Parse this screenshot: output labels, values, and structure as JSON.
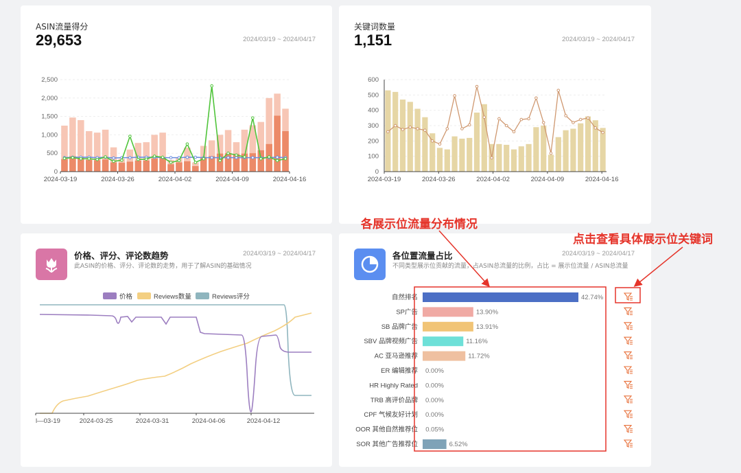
{
  "card1": {
    "title": "ASIN流量得分",
    "value": "29,653",
    "date": "2024/03/19 ~ 2024/04/17",
    "chart_data": {
      "type": "bar",
      "ylim": [
        0,
        2500
      ],
      "yticks": [
        "0",
        "500",
        "1,000",
        "1,500",
        "2,000",
        "2,500"
      ],
      "xticks": [
        "2024-03-19",
        "2024-03-26",
        "2024-04-02",
        "2024-04-09",
        "2024-04-16"
      ],
      "bar_total": [
        1250,
        1470,
        1400,
        1100,
        1060,
        1140,
        660,
        350,
        600,
        780,
        800,
        1000,
        1060,
        320,
        380,
        650,
        250,
        700,
        850,
        1000,
        1130,
        800,
        1140,
        1260,
        1350,
        2000,
        2120,
        1710
      ],
      "bar_inner": [
        340,
        420,
        400,
        320,
        310,
        330,
        250,
        240,
        270,
        300,
        300,
        360,
        370,
        200,
        250,
        280,
        150,
        390,
        420,
        490,
        500,
        480,
        490,
        500,
        580,
        750,
        1520,
        1100
      ],
      "line_green": [
        360,
        380,
        350,
        350,
        330,
        400,
        280,
        310,
        960,
        330,
        340,
        420,
        390,
        250,
        300,
        750,
        250,
        350,
        2330,
        300,
        500,
        450,
        400,
        1460,
        350,
        400,
        300,
        350
      ],
      "line_blue": [
        380,
        390,
        390,
        390,
        380,
        390,
        370,
        380,
        380,
        390,
        390,
        390,
        380,
        380,
        380,
        390,
        390,
        380,
        380,
        380,
        380,
        380,
        380,
        380,
        380,
        380,
        390,
        380
      ],
      "colors": {
        "bar_total": "#f7c6b5",
        "bar_inner": "#ec8a68",
        "line_green": "#4fc43a",
        "line_blue": "#6a8de0"
      }
    }
  },
  "card2": {
    "title": "关键词数量",
    "value": "1,151",
    "date": "2024/03/19 ~ 2024/04/17",
    "chart_data": {
      "type": "bar",
      "ylim": [
        0,
        600
      ],
      "yticks": [
        "0",
        "100",
        "200",
        "300",
        "400",
        "500",
        "600"
      ],
      "xticks": [
        "2024-03-19",
        "2024-03-26",
        "2024-04-02",
        "2024-04-09",
        "2024-04-16"
      ],
      "bars": [
        530,
        520,
        470,
        455,
        410,
        355,
        250,
        155,
        145,
        230,
        215,
        220,
        385,
        440,
        180,
        180,
        175,
        145,
        165,
        180,
        290,
        300,
        110,
        225,
        270,
        280,
        315,
        360,
        335,
        285
      ],
      "line": [
        260,
        300,
        275,
        290,
        280,
        270,
        200,
        180,
        280,
        495,
        280,
        305,
        555,
        355,
        90,
        345,
        300,
        260,
        340,
        345,
        480,
        320,
        120,
        530,
        365,
        320,
        340,
        350,
        285,
        255
      ],
      "colors": {
        "bars": "#e6d6a5",
        "line": "#cf9870"
      }
    }
  },
  "card3": {
    "title": "价格、评分、评论数趋势",
    "subtitle": "此ASIN的价格、评分、评论数的走势，用于了解ASIN的基础情况",
    "date": "2024/03/19 ~ 2024/04/17",
    "legend": [
      "价格",
      "Reviews数量",
      "Reviews评分"
    ],
    "colors": {
      "price": "#9c7ec0",
      "reviews": "#f3cf82",
      "rating": "#8fb5be"
    },
    "xticks": [
      "l—03-19",
      "2024-03-25",
      "2024-03-31",
      "2024-04-06",
      "2024-04-12"
    ]
  },
  "card4": {
    "title": "各位置流量占比",
    "subtitle": "不同类型展示位贡献的流量，占ASIN总流量的比例，占比 = 展示位流量 / ASIN总流量",
    "rows": [
      {
        "label": "自然排名",
        "value": "42.74%",
        "pct": 42.74,
        "color": "#4c6fc5"
      },
      {
        "label": "SP广告",
        "value": "13.90%",
        "pct": 13.9,
        "color": "#f0aaa4"
      },
      {
        "label": "SB 品牌广告",
        "value": "13.91%",
        "pct": 13.91,
        "color": "#f1c476"
      },
      {
        "label": "SBV 品牌视频广告",
        "value": "11.16%",
        "pct": 11.16,
        "color": "#6ee0d8"
      },
      {
        "label": "AC 亚马逊推荐",
        "value": "11.72%",
        "pct": 11.72,
        "color": "#efc0a0"
      },
      {
        "label": "ER 编辑推荐",
        "value": "0.00%",
        "pct": 0,
        "color": "#cccccc"
      },
      {
        "label": "HR Highly Rated",
        "value": "0.00%",
        "pct": 0,
        "color": "#cccccc"
      },
      {
        "label": "TRB 高评价品牌",
        "value": "0.00%",
        "pct": 0,
        "color": "#cccccc"
      },
      {
        "label": "CPF 气候友好计划",
        "value": "0.00%",
        "pct": 0,
        "color": "#cccccc"
      },
      {
        "label": "OOR 其他自然推荐位",
        "value": "0.05%",
        "pct": 0.05,
        "color": "#cccccc"
      },
      {
        "label": "SOR 其他广告推荐位",
        "value": "6.52%",
        "pct": 6.52,
        "color": "#7fa3b8"
      }
    ]
  },
  "annotations": {
    "left": "各展示位流量分布情况",
    "right": "点击查看具体展示位关键词"
  }
}
